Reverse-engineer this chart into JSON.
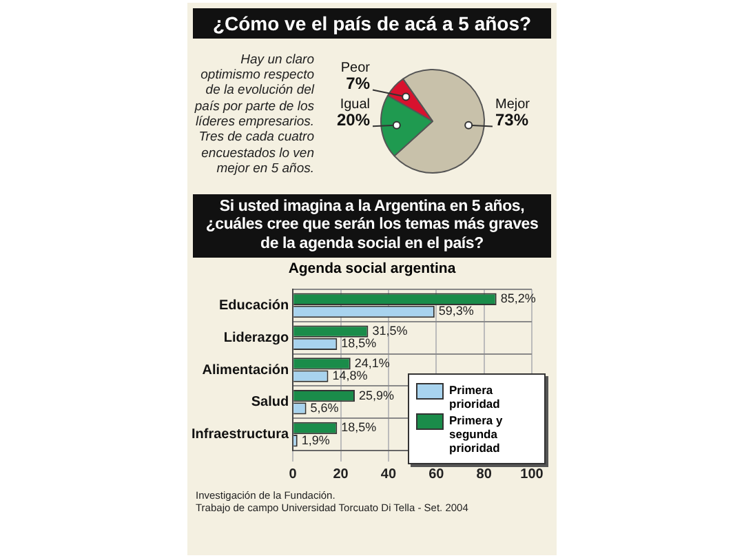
{
  "chart_data": [
    {
      "type": "pie",
      "title": "¿Cómo ve el país de acá a 5 años?",
      "annotations": [
        "Hay un claro optimismo respecto de la evolución del país por parte de los líderes empresarios. Tres de cada cuatro encuestados lo ven mejor en 5 años."
      ],
      "categories": [
        "Mejor",
        "Igual",
        "Peor"
      ],
      "values": [
        73,
        20,
        7
      ],
      "colors": [
        "#c8c1aa",
        "#1f9a50",
        "#d8122e"
      ],
      "value_labels": [
        "73%",
        "20%",
        "7%"
      ]
    },
    {
      "type": "bar",
      "orientation": "horizontal",
      "title": "Si usted imagina a la Argentina en 5 años, ¿cuáles cree que serán los temas más graves de la agenda social en el país?",
      "subtitle": "Agenda social argentina",
      "categories": [
        "Educación",
        "Liderazgo",
        "Alimentación",
        "Salud",
        "Infraestructura"
      ],
      "series": [
        {
          "name": "Primera y segunda prioridad",
          "color": "#1a8c4a",
          "values": [
            85.2,
            31.5,
            24.1,
            25.9,
            18.5
          ],
          "value_labels": [
            "85,2%",
            "31,5%",
            "24,1%",
            "25,9%",
            "18,5%"
          ]
        },
        {
          "name": "Primera prioridad",
          "color": "#a8d3ee",
          "values": [
            59.3,
            18.5,
            14.8,
            5.6,
            1.9
          ],
          "value_labels": [
            "59,3%",
            "18,5%",
            "14,8%",
            "5,6%",
            "1,9%"
          ]
        }
      ],
      "xlim": [
        0,
        100
      ],
      "xticks": [
        0,
        20,
        40,
        60,
        80,
        100
      ],
      "grid": true,
      "legend": "bottom right",
      "annotations": [
        "Investigación de la Fundación.",
        "Trabajo de campo Universidad Torcuato Di Tella - Set. 2004"
      ]
    }
  ]
}
